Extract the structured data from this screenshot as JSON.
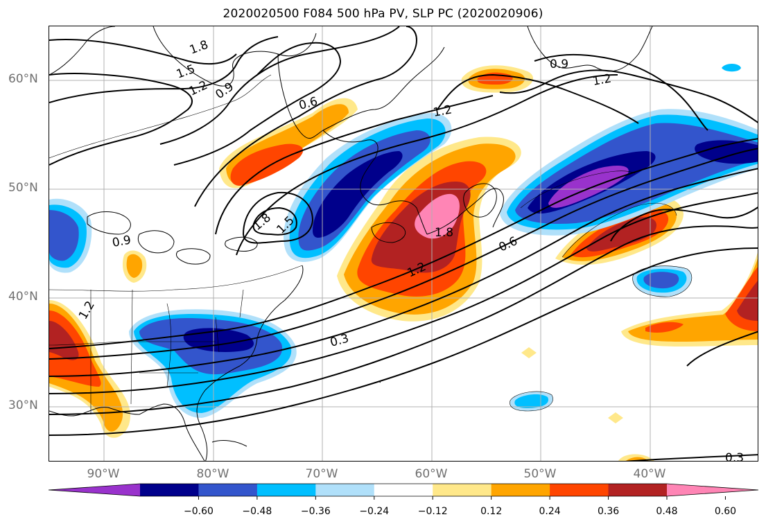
{
  "title": "2020020500 F084 500 hPa PV, SLP PC (2020020906)",
  "map": {
    "lat_labels": [
      {
        "text": "60°N",
        "lat": 60
      },
      {
        "text": "50°N",
        "lat": 50
      },
      {
        "text": "40°N",
        "lat": 40
      },
      {
        "text": "30°N",
        "lat": 30
      }
    ],
    "lon_labels": [
      {
        "text": "90°W",
        "lon": -90
      },
      {
        "text": "80°W",
        "lon": -80
      },
      {
        "text": "70°W",
        "lon": -70
      },
      {
        "text": "60°W",
        "lon": -60
      },
      {
        "text": "50°W",
        "lon": -50
      },
      {
        "text": "40°W",
        "lon": -40
      }
    ],
    "lon_range": [
      -95,
      -30
    ],
    "lat_range": [
      25,
      65
    ],
    "gridlines": true,
    "contour_labels": [
      "1.8",
      "1.5",
      "1.2",
      "0.9",
      "0.6",
      "1.2",
      "0.9",
      "1.2",
      "0.9",
      "1.8",
      "1.5",
      "1.8",
      "1.2",
      "0.6",
      "0.3",
      "0.3",
      "1.2"
    ]
  },
  "colorbar": {
    "colors": [
      "#9932cc",
      "#00008b",
      "#3355cc",
      "#00bfff",
      "#b0e0fa",
      "#ffffff",
      "#ffe88a",
      "#ffa500",
      "#ff4500",
      "#b22222",
      "#ff85b5"
    ],
    "tick_labels": [
      "−0.60",
      "−0.48",
      "−0.36",
      "−0.24",
      "−0.12",
      "0.12",
      "0.24",
      "0.36",
      "0.48",
      "0.60"
    ]
  }
}
